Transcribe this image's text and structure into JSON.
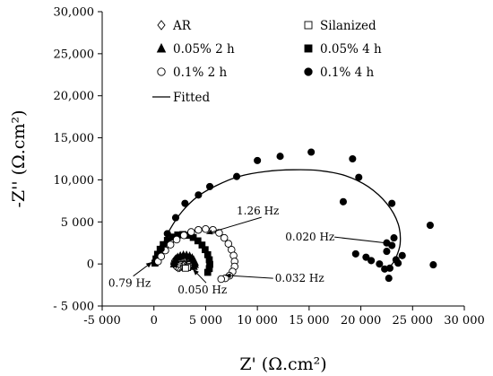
{
  "chart_data": {
    "type": "scatter",
    "title": "",
    "xlabel": "Z' (Ω.cm²)",
    "ylabel": "-Z'' (Ω.cm²)",
    "xlim": [
      -5000,
      30000
    ],
    "ylim": [
      -5000,
      30000
    ],
    "x_ticks": [
      -5000,
      0,
      5000,
      10000,
      15000,
      20000,
      25000,
      30000
    ],
    "x_tick_labels": [
      "-5 000",
      "0",
      "5 000",
      "10 000",
      "15 000",
      "20 000",
      "25 000",
      "30 000"
    ],
    "y_ticks": [
      -5000,
      0,
      5000,
      10000,
      15000,
      20000,
      25000,
      30000
    ],
    "y_tick_labels": [
      "- 5 000",
      "0",
      "5 000",
      "10,000",
      "15,000",
      "20,000",
      "25,000",
      "30,000"
    ],
    "grid": false,
    "legend_position": "top-left-inside",
    "series": [
      {
        "name": "AR",
        "marker": "diamond-open",
        "points": [
          [
            1900,
            0
          ],
          [
            1950,
            200
          ],
          [
            2000,
            380
          ],
          [
            2050,
            500
          ],
          [
            2150,
            620
          ],
          [
            2300,
            680
          ],
          [
            2450,
            650
          ],
          [
            2600,
            550
          ],
          [
            2700,
            400
          ],
          [
            2750,
            250
          ],
          [
            2800,
            80
          ],
          [
            2750,
            -120
          ],
          [
            2650,
            -300
          ],
          [
            2500,
            -420
          ],
          [
            2350,
            -450
          ],
          [
            2200,
            -350
          ],
          [
            2050,
            -200
          ]
        ]
      },
      {
        "name": "Silanized",
        "marker": "square-open",
        "points": [
          [
            2300,
            0
          ],
          [
            2350,
            250
          ],
          [
            2450,
            480
          ],
          [
            2600,
            650
          ],
          [
            2800,
            780
          ],
          [
            3000,
            800
          ],
          [
            3200,
            720
          ],
          [
            3350,
            580
          ],
          [
            3450,
            420
          ],
          [
            3500,
            250
          ],
          [
            3550,
            80
          ],
          [
            3500,
            -100
          ],
          [
            3400,
            -280
          ],
          [
            3250,
            -420
          ],
          [
            3050,
            -500
          ]
        ]
      },
      {
        "name": "0.05% 2 h",
        "marker": "triangle-filled",
        "points": [
          [
            1950,
            0
          ],
          [
            2000,
            250
          ],
          [
            2100,
            520
          ],
          [
            2300,
            780
          ],
          [
            2550,
            950
          ],
          [
            2850,
            1050
          ],
          [
            3150,
            1030
          ],
          [
            3450,
            920
          ],
          [
            3700,
            700
          ],
          [
            3850,
            450
          ],
          [
            3950,
            200
          ],
          [
            3950,
            -50
          ],
          [
            3850,
            -300
          ]
        ]
      },
      {
        "name": "0.05% 4 h",
        "marker": "square-filled",
        "points": [
          [
            100,
            100
          ],
          [
            200,
            600
          ],
          [
            350,
            1150
          ],
          [
            600,
            1750
          ],
          [
            900,
            2300
          ],
          [
            1300,
            2800
          ],
          [
            1800,
            3200
          ],
          [
            2300,
            3450
          ],
          [
            2800,
            3500
          ],
          [
            3300,
            3400
          ],
          [
            3800,
            3150
          ],
          [
            4250,
            2750
          ],
          [
            4650,
            2250
          ],
          [
            4950,
            1700
          ],
          [
            5200,
            1100
          ],
          [
            5350,
            500
          ],
          [
            5400,
            -50
          ],
          [
            5350,
            -550
          ],
          [
            5200,
            -1000
          ]
        ]
      },
      {
        "name": "0.1% 2 h",
        "marker": "circle-open",
        "points": [
          [
            400,
            300
          ],
          [
            700,
            900
          ],
          [
            1100,
            1600
          ],
          [
            1600,
            2300
          ],
          [
            2200,
            2900
          ],
          [
            2900,
            3400
          ],
          [
            3600,
            3800
          ],
          [
            4300,
            4050
          ],
          [
            5000,
            4150
          ],
          [
            5700,
            4050
          ],
          [
            6300,
            3700
          ],
          [
            6800,
            3100
          ],
          [
            7200,
            2400
          ],
          [
            7500,
            1700
          ],
          [
            7700,
            1000
          ],
          [
            7800,
            300
          ],
          [
            7800,
            -300
          ],
          [
            7600,
            -900
          ],
          [
            7300,
            -1400
          ],
          [
            6900,
            -1700
          ],
          [
            6500,
            -1800
          ]
        ]
      },
      {
        "name": "0.1% 4 h",
        "marker": "circle-filled",
        "points": [
          [
            700,
            1800
          ],
          [
            1300,
            3600
          ],
          [
            2100,
            5500
          ],
          [
            3000,
            7200
          ],
          [
            4300,
            8200
          ],
          [
            5400,
            9200
          ],
          [
            8000,
            10400
          ],
          [
            10000,
            12300
          ],
          [
            12200,
            12800
          ],
          [
            15200,
            13300
          ],
          [
            19200,
            12500
          ],
          [
            19800,
            10300
          ],
          [
            18300,
            7400
          ],
          [
            23000,
            7200
          ],
          [
            23200,
            3100
          ],
          [
            22500,
            2500
          ],
          [
            23000,
            2200
          ],
          [
            19500,
            1200
          ],
          [
            20500,
            800
          ],
          [
            21000,
            400
          ],
          [
            22500,
            1500
          ],
          [
            22300,
            -600
          ],
          [
            22800,
            -500
          ],
          [
            23400,
            500
          ],
          [
            24000,
            1000
          ],
          [
            22700,
            -1700
          ],
          [
            21800,
            0
          ],
          [
            23600,
            100
          ],
          [
            26700,
            4600
          ],
          [
            27000,
            -100
          ]
        ]
      }
    ],
    "fitted_label": "Fitted",
    "fitted_curves": [
      [
        [
          1900,
          0
        ],
        [
          2000,
          350
        ],
        [
          2200,
          620
        ],
        [
          2450,
          680
        ],
        [
          2700,
          500
        ],
        [
          2800,
          150
        ],
        [
          2700,
          -250
        ],
        [
          2450,
          -430
        ],
        [
          2200,
          -380
        ]
      ],
      [
        [
          2300,
          0
        ],
        [
          2450,
          450
        ],
        [
          2800,
          760
        ],
        [
          3200,
          740
        ],
        [
          3450,
          450
        ],
        [
          3550,
          100
        ],
        [
          3450,
          -250
        ],
        [
          3150,
          -470
        ]
      ],
      [
        [
          1950,
          0
        ],
        [
          2100,
          500
        ],
        [
          2500,
          920
        ],
        [
          3000,
          1050
        ],
        [
          3500,
          880
        ],
        [
          3850,
          450
        ],
        [
          3950,
          0
        ],
        [
          3850,
          -300
        ]
      ],
      [
        [
          100,
          100
        ],
        [
          350,
          1150
        ],
        [
          900,
          2300
        ],
        [
          1800,
          3200
        ],
        [
          2800,
          3500
        ],
        [
          3800,
          3150
        ],
        [
          4650,
          2250
        ],
        [
          5200,
          1100
        ],
        [
          5400,
          0
        ],
        [
          5200,
          -1000
        ]
      ],
      [
        [
          400,
          300
        ],
        [
          1100,
          1600
        ],
        [
          2200,
          2900
        ],
        [
          3600,
          3800
        ],
        [
          5000,
          4150
        ],
        [
          6300,
          3700
        ],
        [
          7200,
          2400
        ],
        [
          7700,
          1000
        ],
        [
          7800,
          0
        ],
        [
          7500,
          -1000
        ],
        [
          6800,
          -1700
        ]
      ],
      [
        [
          700,
          1800
        ],
        [
          1500,
          4000
        ],
        [
          2700,
          6200
        ],
        [
          4200,
          8000
        ],
        [
          6000,
          9300
        ],
        [
          8200,
          10400
        ],
        [
          10800,
          11000
        ],
        [
          13500,
          11200
        ],
        [
          16000,
          11100
        ],
        [
          18500,
          10500
        ],
        [
          20700,
          9200
        ],
        [
          22500,
          7200
        ],
        [
          23600,
          4800
        ],
        [
          23800,
          2400
        ],
        [
          23300,
          500
        ],
        [
          22900,
          -200
        ]
      ]
    ],
    "annotations": [
      {
        "text": "1.26 Hz",
        "x": 8000,
        "y": 6300,
        "arrow_to": [
          5100,
          3600
        ]
      },
      {
        "text": "0.020 Hz",
        "x": 12700,
        "y": 3200,
        "arrow_to": [
          23100,
          2400
        ]
      },
      {
        "text": "0.032 Hz",
        "x": 11700,
        "y": -1700,
        "arrow_to": [
          6900,
          -1350
        ]
      },
      {
        "text": "0.050 Hz",
        "x": 2300,
        "y": -3100,
        "arrow_to": [
          3800,
          -650
        ]
      },
      {
        "text": "0.79 Hz",
        "x": -4400,
        "y": -2300,
        "arrow_to": [
          -200,
          200
        ]
      }
    ]
  }
}
